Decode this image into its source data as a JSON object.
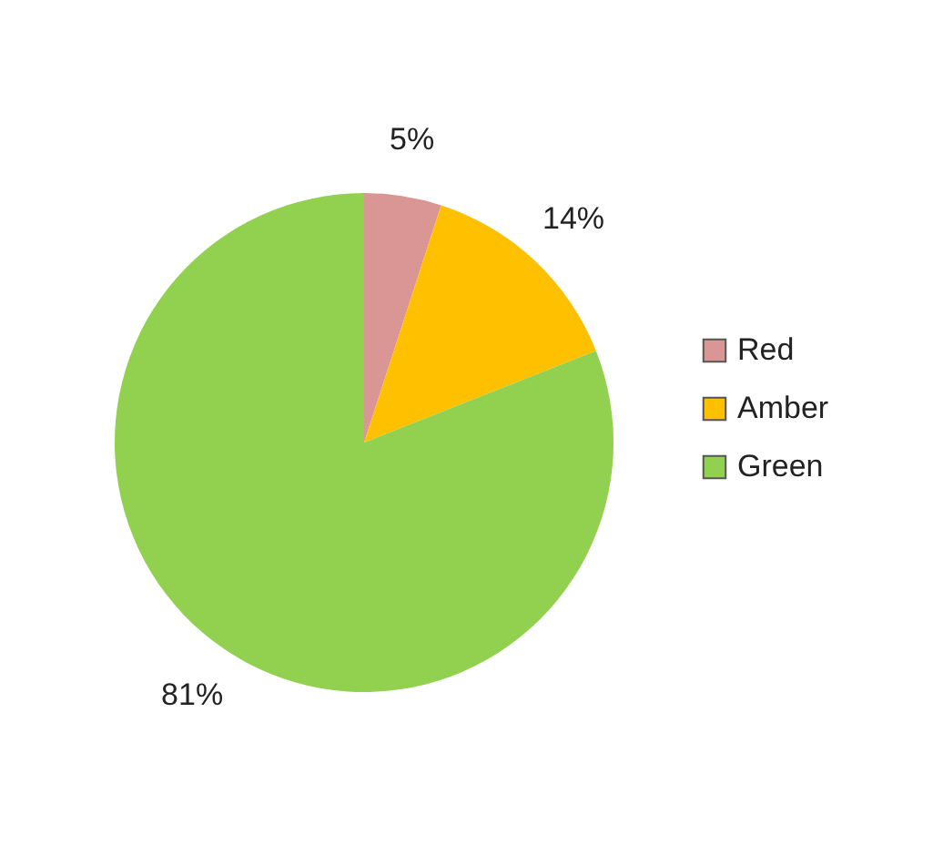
{
  "chart_data": {
    "type": "pie",
    "categories": [
      "Red",
      "Amber",
      "Green"
    ],
    "values": [
      5,
      14,
      81
    ],
    "colors": [
      "#d99694",
      "#ffc000",
      "#92d050"
    ],
    "value_labels": [
      "5%",
      "14%",
      "81%"
    ],
    "legend": "right"
  }
}
